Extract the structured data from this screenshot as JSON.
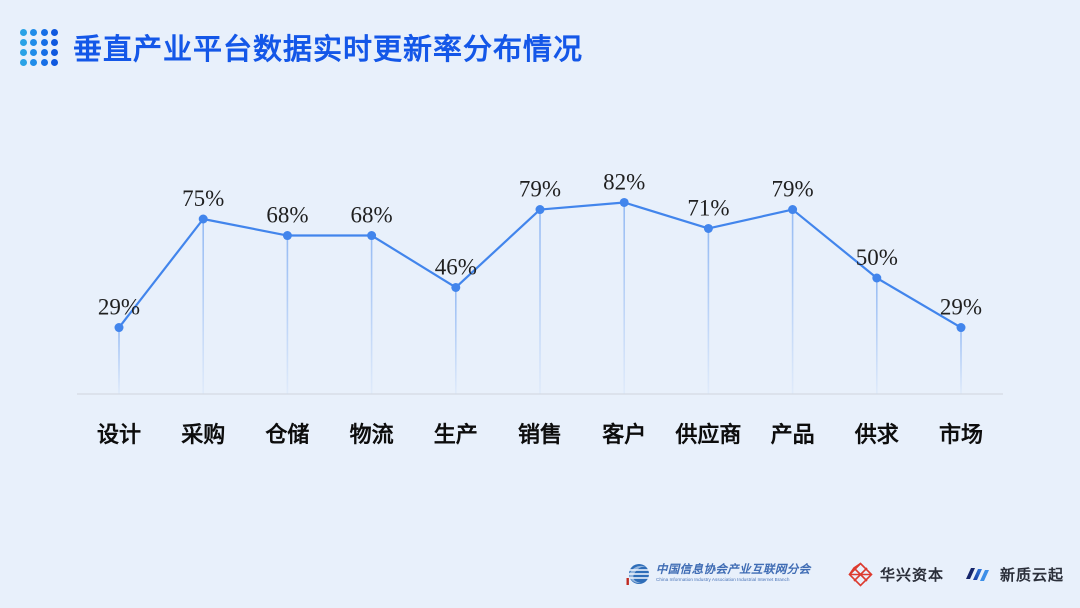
{
  "header": {
    "title": "垂直产业平台数据实时更新率分布情况",
    "title_color": "#1457e8",
    "dot_icon_colors": [
      "#2aa2e6",
      "#1f8ce9",
      "#176fe6",
      "#1059df"
    ]
  },
  "chart_data": {
    "type": "line",
    "title": "垂直产业平台数据实时更新率分布情况",
    "categories": [
      "设计",
      "采购",
      "仓储",
      "物流",
      "生产",
      "销售",
      "客户",
      "供应商",
      "产品",
      "供求",
      "市场"
    ],
    "values": [
      29,
      75,
      68,
      68,
      46,
      79,
      82,
      71,
      79,
      50,
      29
    ],
    "value_labels": [
      "29%",
      "75%",
      "68%",
      "68%",
      "46%",
      "79%",
      "82%",
      "71%",
      "79%",
      "50%",
      "29%"
    ],
    "unit": "%",
    "xlabel": "",
    "ylabel": "",
    "ylim": [
      0,
      100
    ],
    "grid": false,
    "legend": "none",
    "line_color": "#4285ec",
    "point_color": "#4285ec",
    "stem_color": "#4285ec",
    "axis_line_color": "#d8dee8",
    "value_label_color": "#1f1f1f",
    "category_label_color": "#0d0d0d"
  },
  "footer": {
    "association": {
      "name_cn": "中国信息协会产业互联网分会",
      "name_en": "China Information Industry Association Industrial Internet Branch"
    },
    "huaxing": {
      "name": "华兴资本",
      "logo_color": "#dd3a2e"
    },
    "xinzhi": {
      "name": "新质云起",
      "logo_colors": [
        "#16266b",
        "#2056c8",
        "#3d8fe8"
      ]
    }
  }
}
